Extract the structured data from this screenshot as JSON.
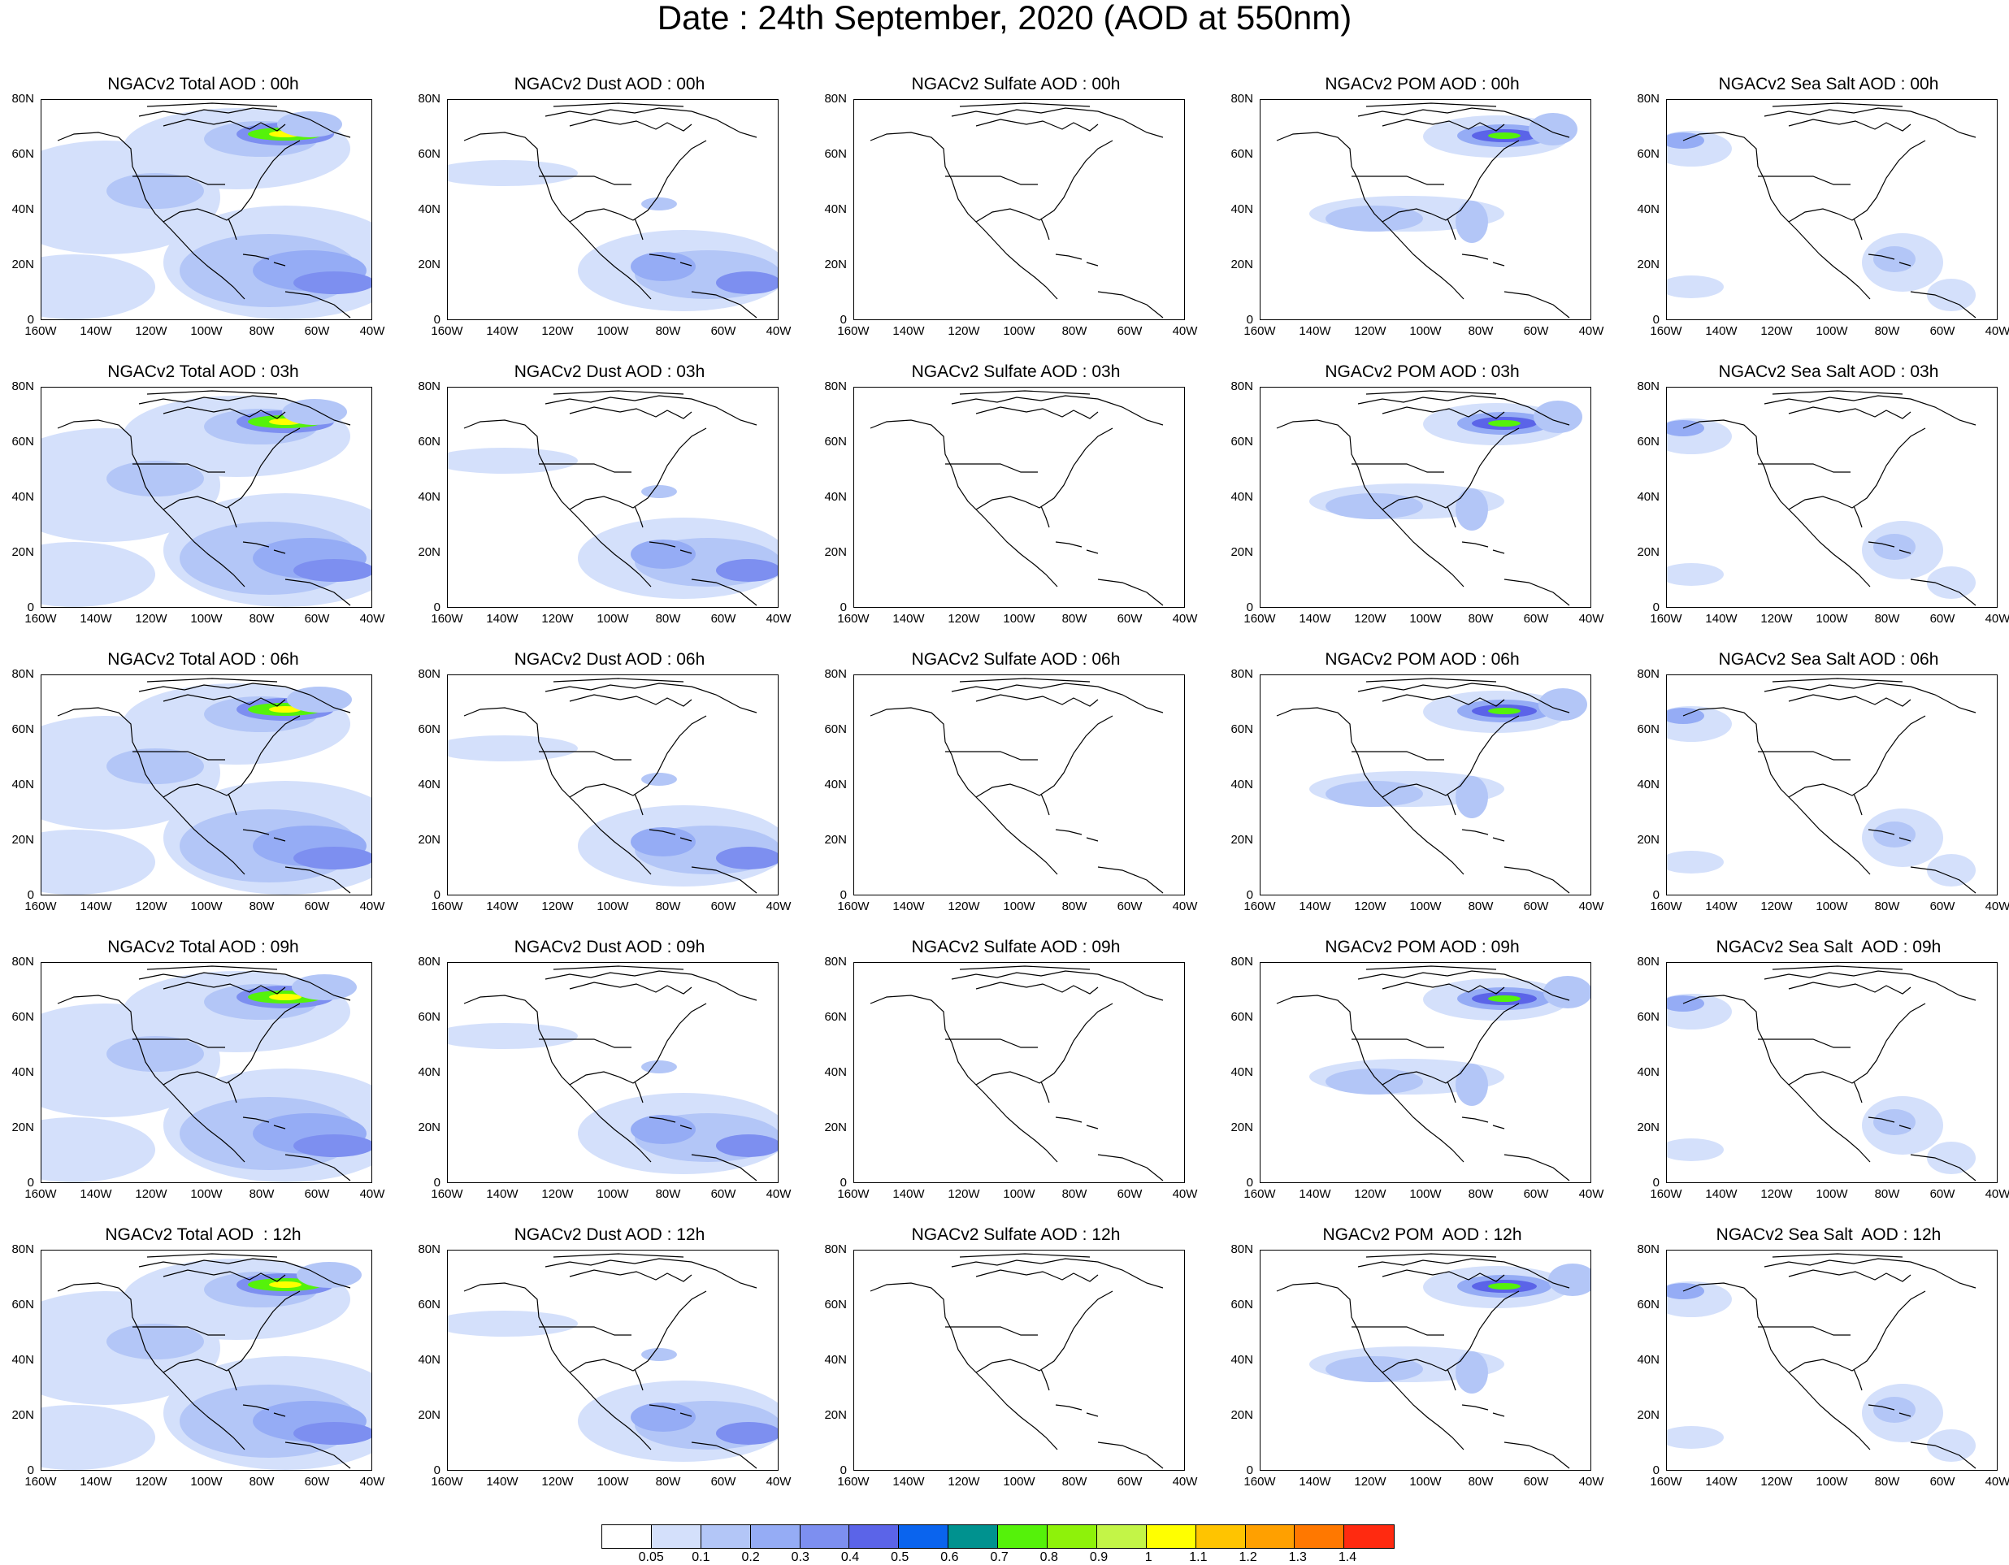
{
  "title": "Date : 24th September, 2020 (AOD at 550nm)",
  "rows": [
    [
      "NGACv2 Total AOD : 00h",
      "NGACv2 Dust AOD : 00h",
      "NGACv2 Sulfate AOD : 00h",
      "NGACv2 POM AOD : 00h",
      "NGACv2 Sea Salt AOD : 00h"
    ],
    [
      "NGACv2 Total AOD : 03h",
      "NGACv2 Dust AOD : 03h",
      "NGACv2 Sulfate AOD : 03h",
      "NGACv2 POM AOD : 03h",
      "NGACv2 Sea Salt AOD : 03h"
    ],
    [
      "NGACv2 Total AOD : 06h",
      "NGACv2 Dust AOD : 06h",
      "NGACv2 Sulfate AOD : 06h",
      "NGACv2 POM AOD : 06h",
      "NGACv2 Sea Salt AOD : 06h"
    ],
    [
      "NGACv2 Total AOD : 09h",
      "NGACv2 Dust AOD : 09h",
      "NGACv2 Sulfate AOD : 09h",
      "NGACv2 POM AOD : 09h",
      "NGACv2 Sea Salt  AOD : 09h"
    ],
    [
      "NGACv2 Total AOD  : 12h",
      "NGACv2 Dust AOD : 12h",
      "NGACv2 Sulfate AOD : 12h",
      "NGACv2 POM  AOD : 12h",
      "NGACv2 Sea Salt  AOD : 12h"
    ]
  ],
  "y_ticks": [
    "80N",
    "60N",
    "40N",
    "20N",
    "0"
  ],
  "x_ticks": [
    "160W",
    "140W",
    "120W",
    "100W",
    "80W",
    "60W",
    "40W"
  ],
  "colorbar": {
    "colors": [
      "#ffffff",
      "#d4e0fb",
      "#b3c6f7",
      "#95acf5",
      "#7d8ff0",
      "#5b64e8",
      "#0a64ee",
      "#00928f",
      "#55f20a",
      "#8ef20a",
      "#c3f547",
      "#ffff00",
      "#ffc400",
      "#ffa000",
      "#ff7800",
      "#ff2a10"
    ],
    "labels": [
      "0.05",
      "0.1",
      "0.2",
      "0.3",
      "0.4",
      "0.5",
      "0.6",
      "0.7",
      "0.8",
      "0.9",
      "1",
      "1.1",
      "1.2",
      "1.3",
      "1.4"
    ]
  }
}
